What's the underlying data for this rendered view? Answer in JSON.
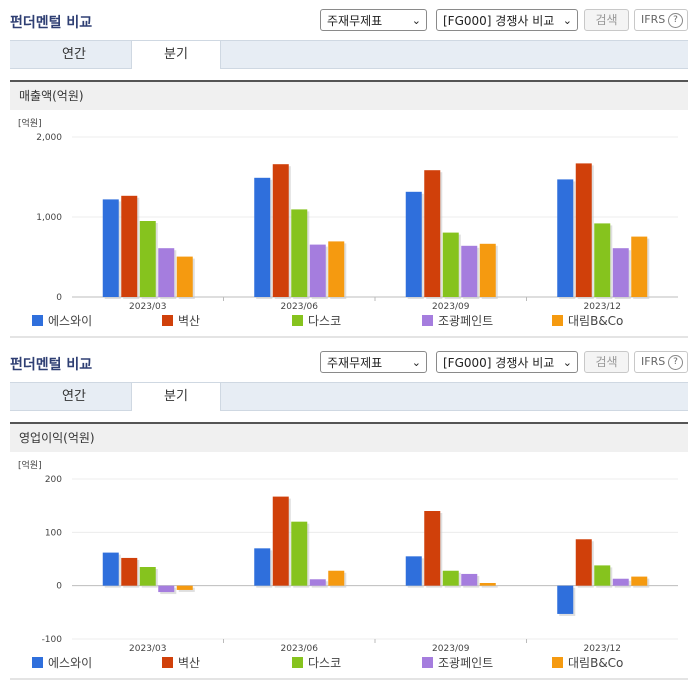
{
  "panels": [
    {
      "title": "펀더멘털 비교",
      "select1": "주재무제표",
      "select2": "[FG000] 경쟁사 비교",
      "search_label": "검색",
      "ifrs_label": "IFRS",
      "tabs": [
        "연간",
        "분기"
      ],
      "active_tab": 1,
      "subtitle": "매출액(억원)",
      "unit": "[억원]"
    },
    {
      "title": "펀더멘털 비교",
      "select1": "주재무제표",
      "select2": "[FG000] 경쟁사 비교",
      "search_label": "검색",
      "ifrs_label": "IFRS",
      "tabs": [
        "연간",
        "분기"
      ],
      "active_tab": 1,
      "subtitle": "영업이익(억원)",
      "unit": "[억원]"
    }
  ],
  "legend": [
    {
      "name": "에스와이",
      "color": "#2f6fdc"
    },
    {
      "name": "벽산",
      "color": "#d0400a"
    },
    {
      "name": "다스코",
      "color": "#86c31e"
    },
    {
      "name": "조광페인트",
      "color": "#a57dde"
    },
    {
      "name": "대림B&Co",
      "color": "#f59a10"
    }
  ],
  "chart_data": [
    {
      "type": "bar",
      "categories": [
        "2023/03",
        "2023/06",
        "2023/09",
        "2023/12"
      ],
      "ylim": [
        0,
        2000
      ],
      "yticks": [
        "0",
        "1,000",
        "2,000"
      ],
      "ytick_values": [
        0,
        1000,
        2000
      ],
      "series": [
        {
          "name": "에스와이",
          "values": [
            1220,
            1490,
            1315,
            1470
          ]
        },
        {
          "name": "벽산",
          "values": [
            1265,
            1660,
            1585,
            1670
          ]
        },
        {
          "name": "다스코",
          "values": [
            950,
            1095,
            805,
            920
          ]
        },
        {
          "name": "조광페인트",
          "values": [
            610,
            655,
            640,
            610
          ]
        },
        {
          "name": "대림B&Co",
          "values": [
            505,
            695,
            665,
            755
          ]
        }
      ]
    },
    {
      "type": "bar",
      "categories": [
        "2023/03",
        "2023/06",
        "2023/09",
        "2023/12"
      ],
      "ylim": [
        -100,
        200
      ],
      "yticks": [
        "-100",
        "0",
        "100",
        "200"
      ],
      "ytick_values": [
        -100,
        0,
        100,
        200
      ],
      "series": [
        {
          "name": "에스와이",
          "values": [
            62,
            70,
            55,
            -53
          ]
        },
        {
          "name": "벽산",
          "values": [
            52,
            167,
            140,
            87
          ]
        },
        {
          "name": "다스코",
          "values": [
            35,
            120,
            28,
            38
          ]
        },
        {
          "name": "조광페인트",
          "values": [
            -12,
            12,
            22,
            13
          ]
        },
        {
          "name": "대림B&Co",
          "values": [
            -8,
            28,
            5,
            17
          ]
        }
      ]
    }
  ]
}
